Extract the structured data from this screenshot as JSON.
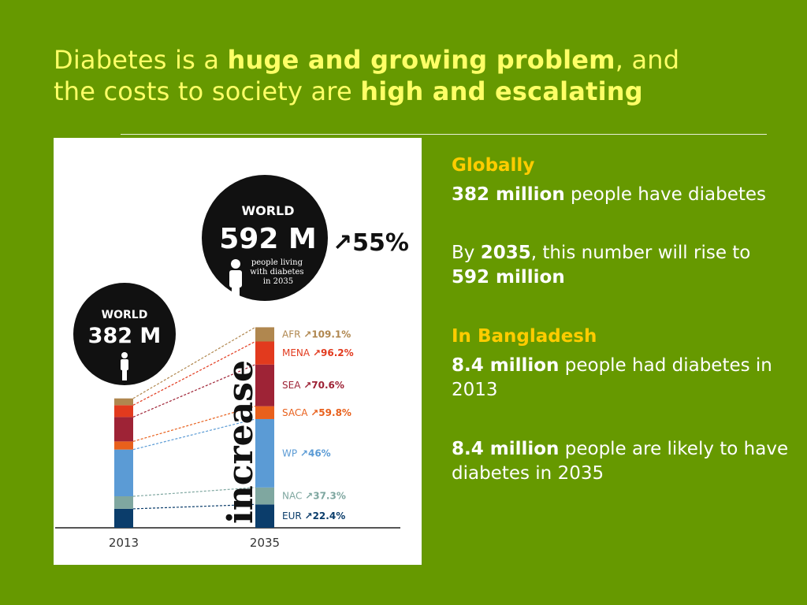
{
  "slide": {
    "title": {
      "line1_a": "Diabetes is a ",
      "line1_b": "huge and growing problem",
      "line1_c": ", and",
      "line2_a": "the costs to society are ",
      "line2_b": "high and escalating"
    },
    "panel": {
      "globally_heading": "Globally",
      "p1_bold": "382 million",
      "p1_rest": " people have diabetes",
      "p2_a": "By ",
      "p2_bold1": "2035",
      "p2_b": ", this number will rise to ",
      "p2_bold2": "592 million",
      "bangladesh_heading": "In Bangladesh",
      "p3_bold": "8.4 million",
      "p3_rest": " people had diabetes in 2013",
      "p4_bold": "8.4 million",
      "p4_rest": " people are likely to have diabetes in 2035"
    }
  },
  "chart_data": {
    "type": "bar",
    "stacked": true,
    "categories": [
      "2013",
      "2035"
    ],
    "totals": [
      382,
      592
    ],
    "unit": "M",
    "bubble_2013": {
      "label": "WORLD",
      "value": "382 M"
    },
    "bubble_2035": {
      "label": "WORLD",
      "value": "592 M",
      "caption": "people living with diabetes in 2035"
    },
    "overall_increase": "↗55%",
    "vertical_label": "increase",
    "series": [
      {
        "name": "EUR",
        "increase": "↗22.4%",
        "color": "#0b3d6b",
        "values": [
          56,
          69
        ]
      },
      {
        "name": "NAC",
        "increase": "↗37.3%",
        "color": "#7fa7a0",
        "values": [
          37,
          50
        ]
      },
      {
        "name": "WP",
        "increase": "↗46%",
        "color": "#5b9bd5",
        "values": [
          138,
          202
        ]
      },
      {
        "name": "SACA",
        "increase": "↗59.8%",
        "color": "#e8601c",
        "values": [
          24,
          38
        ]
      },
      {
        "name": "SEA",
        "increase": "↗70.6%",
        "color": "#9e2336",
        "values": [
          72,
          123
        ]
      },
      {
        "name": "MENA",
        "increase": "↗96.2%",
        "color": "#e23a1e",
        "values": [
          35,
          68
        ]
      },
      {
        "name": "AFR",
        "increase": "↗109.1%",
        "color": "#b0874f",
        "values": [
          20,
          42
        ]
      }
    ]
  }
}
